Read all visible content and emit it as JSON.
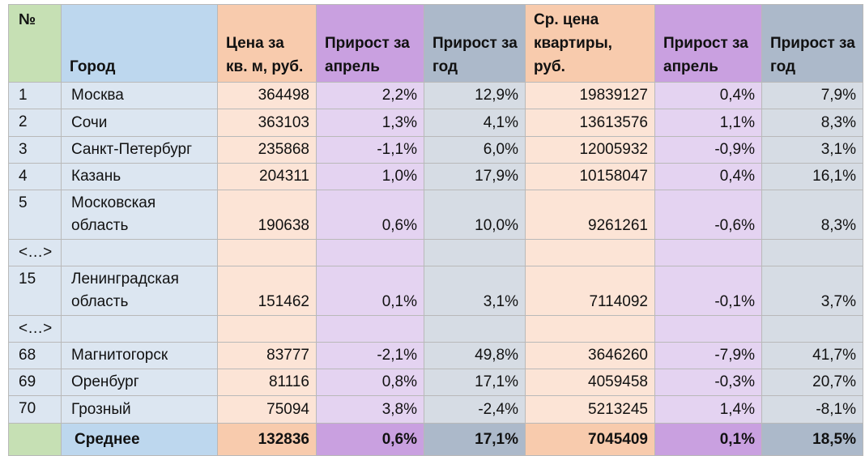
{
  "table": {
    "header": [
      "№",
      "Город",
      "Цена за кв. м, руб.",
      "Прирост за апрель",
      "Прирост за год",
      "Ср. цена квартиры, руб.",
      "Прирост за апрель",
      "Прирост за год"
    ],
    "rows": [
      [
        "1",
        "Москва",
        "364498",
        "2,2%",
        "12,9%",
        "19839127",
        "0,4%",
        "7,9%"
      ],
      [
        "2",
        "Сочи",
        "363103",
        "1,3%",
        "4,1%",
        "13613576",
        "1,1%",
        "8,3%"
      ],
      [
        "3",
        "Санкт-Петербург",
        "235868",
        "-1,1%",
        "6,0%",
        "12005932",
        "-0,9%",
        "3,1%"
      ],
      [
        "4",
        "Казань",
        "204311",
        "1,0%",
        "17,9%",
        "10158047",
        "0,4%",
        "16,1%"
      ],
      [
        "5",
        "Московская область",
        "190638",
        "0,6%",
        "10,0%",
        "9261261",
        "-0,6%",
        "8,3%"
      ],
      [
        "<…>"
      ],
      [
        "15",
        "Ленинградская область",
        "151462",
        "0,1%",
        "3,1%",
        "7114092",
        "-0,1%",
        "3,7%"
      ],
      [
        "<…>"
      ],
      [
        "68",
        "Магнитогорск",
        "83777",
        "-2,1%",
        "49,8%",
        "3646260",
        "-7,9%",
        "41,7%"
      ],
      [
        "69",
        "Оренбург",
        "81116",
        "0,8%",
        "17,1%",
        "4059458",
        "-0,3%",
        "20,7%"
      ],
      [
        "70",
        "Грозный",
        "75094",
        "3,8%",
        "-2,4%",
        "5213245",
        "1,4%",
        "-8,1%"
      ]
    ],
    "footer": {
      "label": "Среднее",
      "values": [
        "132836",
        "0,6%",
        "17,1%",
        "7045409",
        "0,1%",
        "18,5%"
      ]
    }
  }
}
